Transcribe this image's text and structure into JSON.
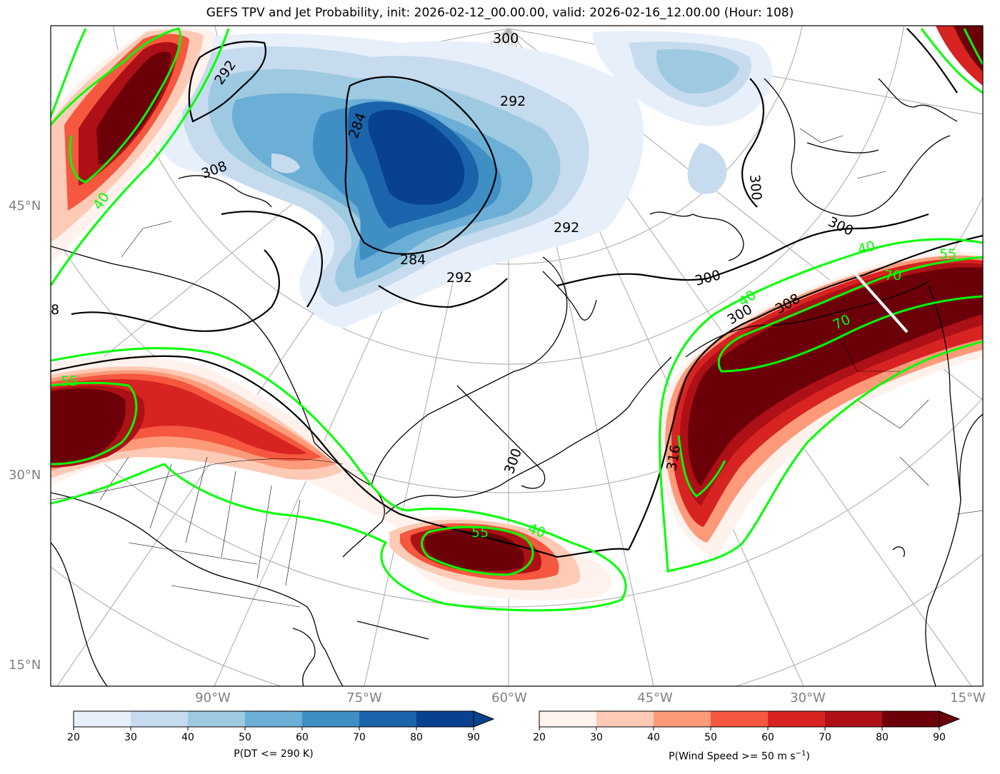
{
  "title": "GEFS TPV and Jet Probability, init: 2026-02-12_00.00.00, valid: 2026-02-16_12.00.00 (Hour: 108)",
  "lat_labels": [
    "45°N",
    "30°N",
    "15°N"
  ],
  "lon_labels": [
    "90°W",
    "75°W",
    "60°W",
    "45°W",
    "30°W",
    "15°W"
  ],
  "contour_labels": {
    "theta": [
      "292",
      "300",
      "284",
      "292",
      "284",
      "292",
      "292",
      "300",
      "300",
      "300",
      "308",
      "300",
      "316",
      "300",
      "308",
      "8"
    ],
    "jet": [
      "55",
      "40",
      "55",
      "40",
      "40",
      "70",
      "70",
      "55",
      "40"
    ]
  },
  "colorbars": {
    "blue": {
      "label": "P(DT <= 290 K)",
      "ticks": [
        "20",
        "30",
        "40",
        "50",
        "60",
        "70",
        "80",
        "90"
      ],
      "colors": [
        "#e7f0fa",
        "#c7dbef",
        "#9ecae1",
        "#6baed6",
        "#3f8fc5",
        "#1a64ab",
        "#084190"
      ]
    },
    "red": {
      "label": "P(Wind Speed >= 50 m s",
      "label_sup": "−1",
      "label_end": ")",
      "ticks": [
        "20",
        "30",
        "40",
        "50",
        "60",
        "70",
        "80",
        "90"
      ],
      "colors": [
        "#fff1ec",
        "#fdcab5",
        "#fc9a7a",
        "#f5573f",
        "#d72322",
        "#ad1016",
        "#6c0009"
      ]
    }
  }
}
